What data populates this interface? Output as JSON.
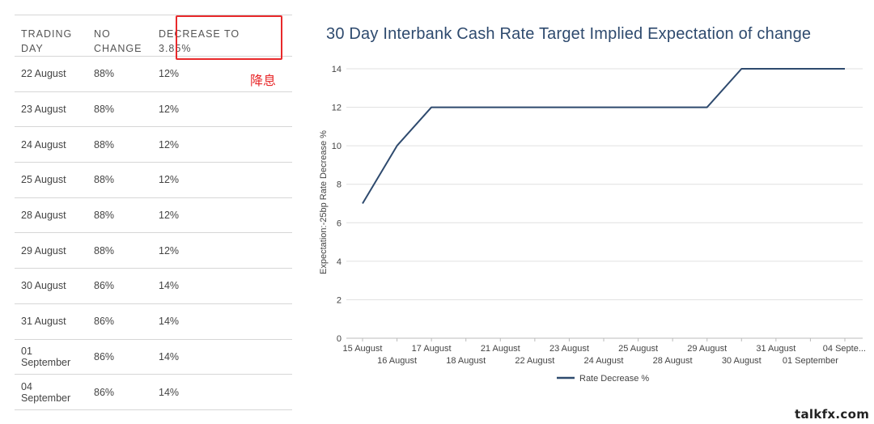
{
  "table": {
    "headers": [
      {
        "line1": "TRADING",
        "line2": "DAY"
      },
      {
        "line1": "NO",
        "line2": "CHANGE"
      },
      {
        "line1": "DECREASE TO",
        "line2": "3.85%"
      }
    ],
    "rows": [
      {
        "day": "22 August",
        "no_change": "88%",
        "decrease": "12%"
      },
      {
        "day": "23 August",
        "no_change": "88%",
        "decrease": "12%"
      },
      {
        "day": "24 August",
        "no_change": "88%",
        "decrease": "12%"
      },
      {
        "day": "25 August",
        "no_change": "88%",
        "decrease": "12%"
      },
      {
        "day": "28 August",
        "no_change": "88%",
        "decrease": "12%"
      },
      {
        "day": "29 August",
        "no_change": "88%",
        "decrease": "12%"
      },
      {
        "day": "30 August",
        "no_change": "86%",
        "decrease": "14%"
      },
      {
        "day": "31 August",
        "no_change": "86%",
        "decrease": "14%"
      },
      {
        "day": "01 September",
        "no_change": "86%",
        "decrease": "14%"
      },
      {
        "day": "04 September",
        "no_change": "86%",
        "decrease": "14%"
      }
    ]
  },
  "annotation": "降息",
  "watermark": "talkfx.com",
  "colors": {
    "line": "#2e4a6e",
    "highlight": "#e8292b",
    "grid": "#e0e0e0"
  },
  "chart_data": {
    "type": "line",
    "title": "30 Day Interbank Cash Rate Target Implied Expectation of change",
    "ylabel": "Expectation:-25bp Rate Decrease %",
    "xlabel": "",
    "ylim": [
      0,
      14
    ],
    "yticks": [
      0,
      2,
      4,
      6,
      8,
      10,
      12,
      14
    ],
    "grid": true,
    "legend": "bottom",
    "categories": [
      "15 August",
      "16 August",
      "17 August",
      "18 August",
      "21 August",
      "22 August",
      "23 August",
      "24 August",
      "25 August",
      "28 August",
      "29 August",
      "30 August",
      "31 August",
      "01 September",
      "04 Septe..."
    ],
    "series": [
      {
        "name": "Rate Decrease %",
        "values": [
          7,
          10,
          12,
          12,
          12,
          12,
          12,
          12,
          12,
          12,
          12,
          14,
          14,
          14,
          14
        ]
      }
    ]
  }
}
